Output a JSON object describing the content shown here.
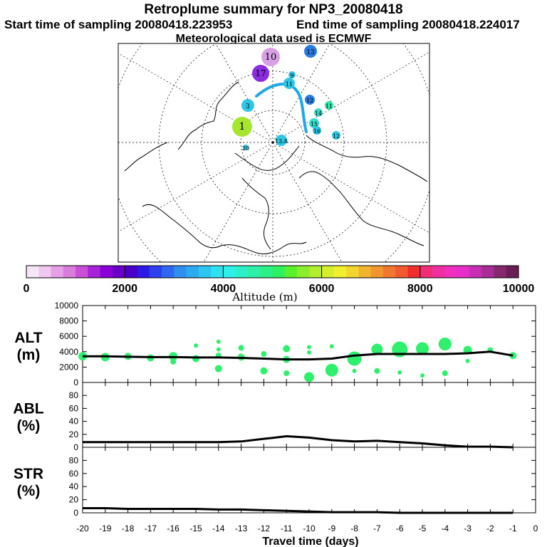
{
  "header": {
    "title": "Retroplume summary for NP3_20080418",
    "start_label": "Start time of sampling 20080418.223953",
    "end_label": "End time of sampling 20080418.224017",
    "met_label": "Meteorological data used is ECMWF"
  },
  "map": {
    "markers": [
      {
        "label": "10",
        "color": "#d9a0e6"
      },
      {
        "label": "17",
        "color": "#8b2be2"
      },
      {
        "label": "13",
        "color": "#2a7bde"
      },
      {
        "label": "9",
        "color": "#2ec6e6"
      },
      {
        "label": "11",
        "color": "#2ec6e6"
      },
      {
        "label": "12",
        "color": "#2a7bde"
      },
      {
        "label": "14",
        "color": "#33ddc8"
      },
      {
        "label": "15",
        "color": "#33ddc8"
      },
      {
        "label": "16",
        "color": "#2ec6e6"
      },
      {
        "label": "11",
        "color": "#2ee6a5"
      },
      {
        "label": "12",
        "color": "#2ec6e6"
      },
      {
        "label": "13.8",
        "color": "#2ec6e6"
      },
      {
        "label": "1",
        "color": "#a5e62e"
      },
      {
        "label": "3",
        "color": "#2ec6e6"
      },
      {
        "label": "20",
        "color": "#2ec6e6"
      }
    ],
    "colors": {
      "land": "#000000",
      "track": "#1fa8e6"
    }
  },
  "colorbar": {
    "title": "Altitude (m)",
    "ticks": [
      "0",
      "2000",
      "4000",
      "6000",
      "8000",
      "10000"
    ],
    "colors": [
      "#f5e6f5",
      "#f0c8f0",
      "#e6a0e6",
      "#d97ddc",
      "#c94fd6",
      "#a822d6",
      "#8a00d6",
      "#6a00c8",
      "#4b00c8",
      "#2e1ae6",
      "#2e3ff0",
      "#2e68f0",
      "#2e8ff0",
      "#2eaaf0",
      "#2ec6f0",
      "#2ee0f0",
      "#2ef0e6",
      "#2ef0c8",
      "#2ef0a8",
      "#2ef088",
      "#2ef060",
      "#5af02e",
      "#8aee2e",
      "#b0ee2e",
      "#d6ee2e",
      "#f0f02e",
      "#f0d62e",
      "#f0b42e",
      "#f0962e",
      "#f0782e",
      "#f05a2e",
      "#f02e2e",
      "#f02e78",
      "#f02ea0",
      "#f02ec0",
      "#e62ec8",
      "#c82eb4",
      "#a82e96",
      "#86286e",
      "#6a1e54"
    ]
  },
  "chart_data": {
    "type": "line",
    "x": [
      -20,
      -19,
      -18,
      -17,
      -16,
      -15,
      -14,
      -13,
      -12,
      -11,
      -10,
      -9,
      -8,
      -7,
      -6,
      -5,
      -4,
      -3,
      -2,
      -1
    ],
    "xlabel": "Travel time (days)",
    "xticks": [
      "-20",
      "-19",
      "-18",
      "-17",
      "-16",
      "-15",
      "-14",
      "-13",
      "-12",
      "-11",
      "-10",
      "-9",
      "-8",
      "-7",
      "-6",
      "-5",
      "-4",
      "-3",
      "-2",
      "-1",
      "0"
    ],
    "xlim": [
      -20,
      0
    ],
    "panels": [
      {
        "name": "ALT",
        "ylabel_line1": "ALT",
        "ylabel_line2": "(m)",
        "ylim": [
          0,
          10000
        ],
        "yticks": [
          "0",
          "2000",
          "4000",
          "6000",
          "8000",
          "10000"
        ],
        "line": [
          3400,
          3400,
          3350,
          3300,
          3300,
          3250,
          3250,
          3200,
          3100,
          3000,
          3000,
          3100,
          3500,
          3700,
          3700,
          3700,
          3700,
          3800,
          4000,
          3500
        ],
        "dots": [
          {
            "x": -20,
            "y": 3400,
            "s": 6
          },
          {
            "x": -19,
            "y": 3300,
            "s": 6
          },
          {
            "x": -18,
            "y": 3400,
            "s": 5
          },
          {
            "x": -17,
            "y": 3200,
            "s": 5
          },
          {
            "x": -16,
            "y": 3400,
            "s": 6
          },
          {
            "x": -16,
            "y": 2700,
            "s": 4
          },
          {
            "x": -15,
            "y": 4800,
            "s": 3
          },
          {
            "x": -15,
            "y": 3100,
            "s": 5
          },
          {
            "x": -14,
            "y": 5300,
            "s": 3
          },
          {
            "x": -14,
            "y": 4300,
            "s": 3
          },
          {
            "x": -14,
            "y": 3500,
            "s": 4
          },
          {
            "x": -14,
            "y": 1800,
            "s": 5
          },
          {
            "x": -13,
            "y": 4500,
            "s": 4
          },
          {
            "x": -13,
            "y": 3300,
            "s": 5
          },
          {
            "x": -12,
            "y": 3700,
            "s": 4
          },
          {
            "x": -12,
            "y": 1500,
            "s": 5
          },
          {
            "x": -11,
            "y": 4400,
            "s": 5
          },
          {
            "x": -11,
            "y": 3000,
            "s": 5
          },
          {
            "x": -11,
            "y": 1200,
            "s": 4
          },
          {
            "x": -10,
            "y": 4600,
            "s": 3
          },
          {
            "x": -10,
            "y": 3900,
            "s": 3
          },
          {
            "x": -10,
            "y": 700,
            "s": 7
          },
          {
            "x": -9,
            "y": 4700,
            "s": 3
          },
          {
            "x": -9,
            "y": 1600,
            "s": 9
          },
          {
            "x": -8,
            "y": 3100,
            "s": 10
          },
          {
            "x": -8,
            "y": 1500,
            "s": 3
          },
          {
            "x": -7,
            "y": 4300,
            "s": 8
          },
          {
            "x": -7,
            "y": 1500,
            "s": 4
          },
          {
            "x": -6,
            "y": 4300,
            "s": 11
          },
          {
            "x": -6,
            "y": 1300,
            "s": 3
          },
          {
            "x": -5,
            "y": 4400,
            "s": 9
          },
          {
            "x": -5,
            "y": 900,
            "s": 3
          },
          {
            "x": -4,
            "y": 5000,
            "s": 9
          },
          {
            "x": -4,
            "y": 1200,
            "s": 4
          },
          {
            "x": -3,
            "y": 4200,
            "s": 6
          },
          {
            "x": -3,
            "y": 2800,
            "s": 3
          },
          {
            "x": -2,
            "y": 4200,
            "s": 4
          },
          {
            "x": -1,
            "y": 3500,
            "s": 5
          }
        ],
        "dot_color": "#2ef06c"
      },
      {
        "name": "ABL",
        "ylabel_line1": "ABL",
        "ylabel_line2": "(%)",
        "ylim": [
          0,
          100
        ],
        "yticks": [
          "0",
          "20",
          "40",
          "60",
          "80"
        ],
        "line": [
          8,
          8,
          8,
          8,
          8,
          8,
          8,
          9,
          13,
          17,
          15,
          11,
          9,
          10,
          8,
          6,
          3,
          1,
          1,
          0
        ]
      },
      {
        "name": "STR",
        "ylabel_line1": "STR",
        "ylabel_line2": "(%)",
        "ylim": [
          0,
          100
        ],
        "yticks": [
          "0",
          "20",
          "40",
          "60",
          "80"
        ],
        "line": [
          7,
          7,
          6,
          6,
          6,
          6,
          5,
          5,
          4,
          3,
          2,
          1,
          1,
          1,
          0,
          0,
          0,
          0,
          0,
          0
        ]
      }
    ]
  }
}
